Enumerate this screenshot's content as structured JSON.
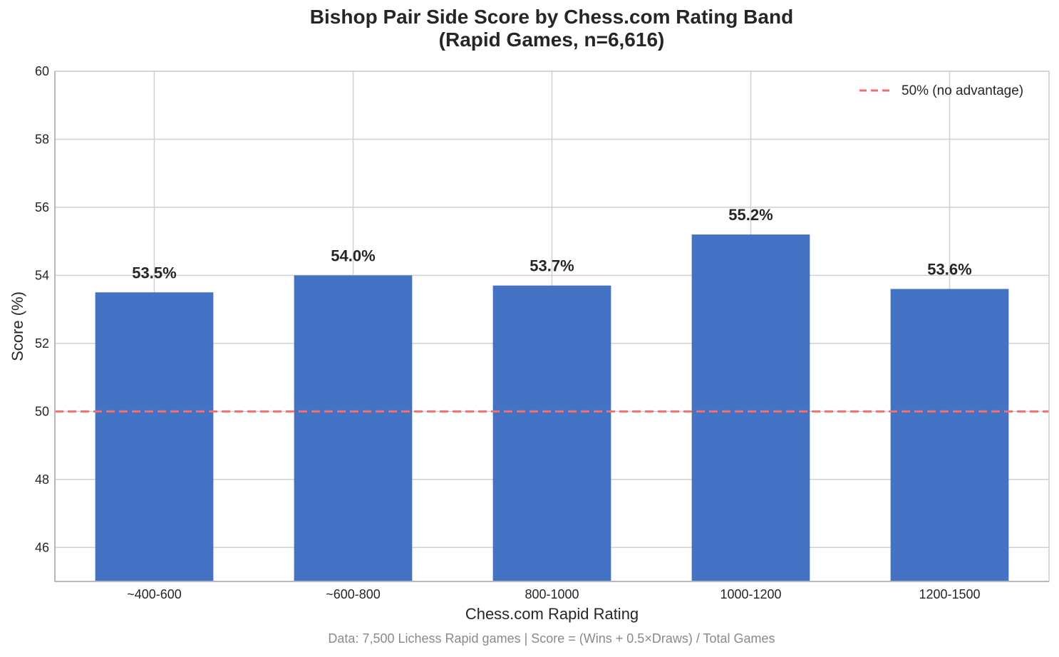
{
  "chart_data": {
    "type": "bar",
    "title_line1": "Bishop Pair Side Score by Chess.com Rating Band",
    "title_line2": "(Rapid Games, n=6,616)",
    "xlabel": "Chess.com Rapid Rating",
    "ylabel": "Score (%)",
    "categories": [
      "~400-600",
      "~600-800",
      "800-1000",
      "1000-1200",
      "1200-1500"
    ],
    "values": [
      53.5,
      54.0,
      53.7,
      55.2,
      53.6
    ],
    "value_labels": [
      "53.5%",
      "54.0%",
      "53.7%",
      "55.2%",
      "53.6%"
    ],
    "ylim": [
      45,
      60
    ],
    "yticks": [
      46,
      48,
      50,
      52,
      54,
      56,
      58,
      60
    ],
    "grid": true,
    "bar_color": "#4472c4",
    "reference_line": {
      "value": 50,
      "label": "50% (no advantage)",
      "color": "#f07070",
      "style": "dashed"
    },
    "legend_position": "top-right",
    "footnote": "Data: 7,500 Lichess Rapid games | Score = (Wins + 0.5×Draws) / Total Games"
  }
}
